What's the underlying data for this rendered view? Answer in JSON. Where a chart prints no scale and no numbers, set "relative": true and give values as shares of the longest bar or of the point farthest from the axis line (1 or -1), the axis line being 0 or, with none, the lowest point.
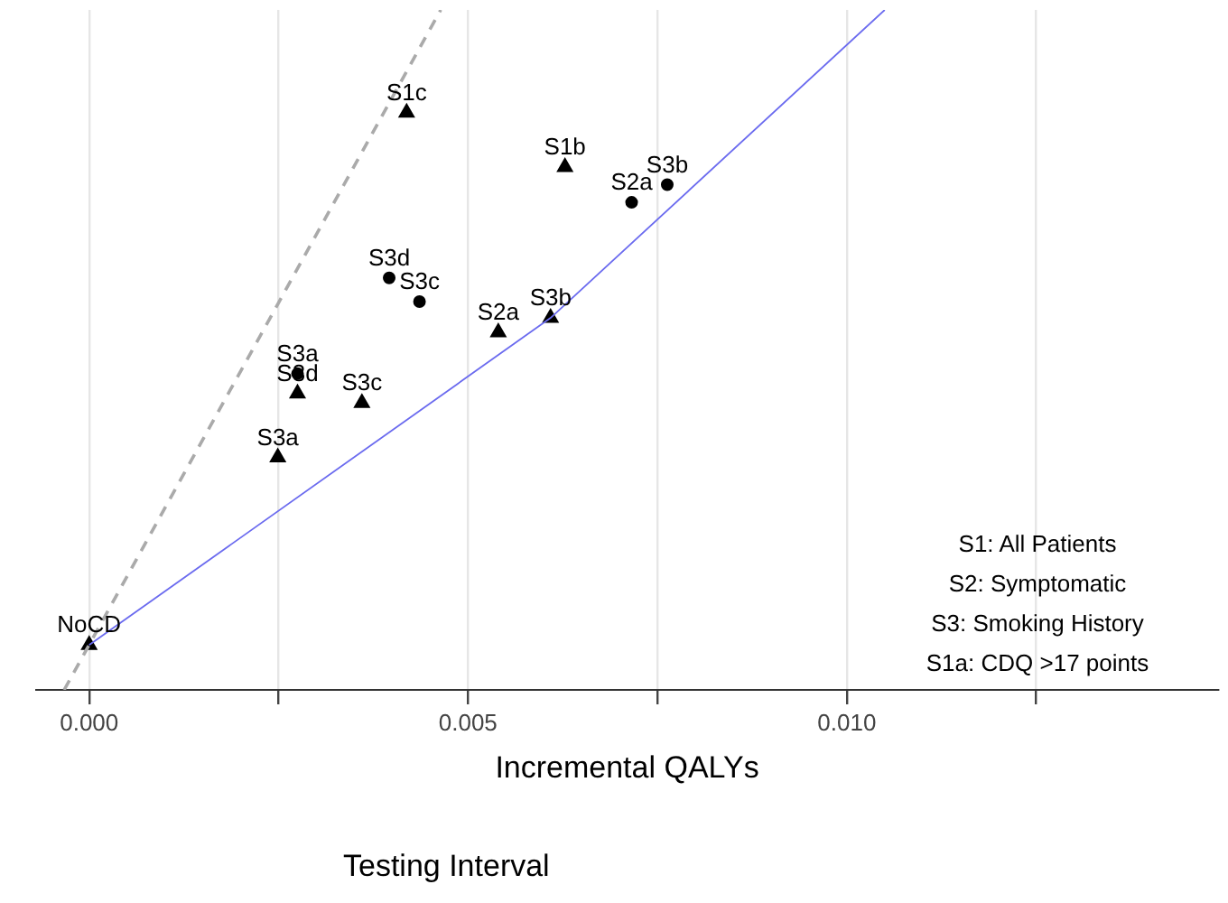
{
  "chart_data": {
    "type": "scatter",
    "relative": true,
    "xlabel": "Incremental QALYs",
    "legend_title": "Testing Interval",
    "legend": false,
    "grid": "x",
    "xlim": [
      -0.0007,
      0.0149
    ],
    "xticks": [
      {
        "value": 0,
        "label": "0.000"
      },
      {
        "value": 0.0025,
        "label": null
      },
      {
        "value": 0.005,
        "label": "0.005"
      },
      {
        "value": 0.0075,
        "label": null
      },
      {
        "value": 0.01,
        "label": "0.010"
      },
      {
        "value": 0.0125,
        "label": null
      }
    ],
    "series": [
      {
        "type": "line",
        "color": "#6b6bef",
        "marker": "none",
        "line_style": "solid",
        "x": [
          0,
          0.00609,
          0.0105
        ],
        "values": [
          0.066,
          0.547,
          1
        ]
      },
      {
        "type": "line",
        "color": "#aaaaaa",
        "marker": "none",
        "line_style": "dashed",
        "x": [
          -0.00033,
          0.00464
        ],
        "values": [
          0,
          1
        ]
      },
      {
        "type": "scatter",
        "color": "#000000",
        "marker": "triangle",
        "x": [
          0,
          0.00419,
          0.00628,
          0.0054,
          0.00609,
          0.00275,
          0.0036,
          0.00249
        ],
        "values": [
          0.066,
          0.849,
          0.769,
          0.526,
          0.547,
          0.436,
          0.422,
          0.342
        ]
      },
      {
        "type": "scatter",
        "color": "#000000",
        "marker": "circle",
        "x": [
          0.00716,
          0.00763,
          0.00396,
          0.00436,
          0.00275
        ],
        "values": [
          0.717,
          0.743,
          0.606,
          0.571,
          0.465
        ]
      }
    ],
    "annotations": [
      {
        "text": "NoCD",
        "x": 0,
        "y": 0.066
      },
      {
        "text": "S1c",
        "x": 0.00419,
        "y": 0.849
      },
      {
        "text": "S1b",
        "x": 0.00628,
        "y": 0.769
      },
      {
        "text": "S2a",
        "x": 0.0054,
        "y": 0.526
      },
      {
        "text": "S3b",
        "x": 0.00609,
        "y": 0.547
      },
      {
        "text": "S3d",
        "x": 0.00275,
        "y": 0.436
      },
      {
        "text": "S3c",
        "x": 0.0036,
        "y": 0.422
      },
      {
        "text": "S3a",
        "x": 0.00249,
        "y": 0.342
      },
      {
        "text": "S2a",
        "x": 0.00716,
        "y": 0.717
      },
      {
        "text": "S3b",
        "x": 0.00763,
        "y": 0.743
      },
      {
        "text": "S3d",
        "x": 0.00396,
        "y": 0.606
      },
      {
        "text": "S3c",
        "x": 0.00436,
        "y": 0.571
      },
      {
        "text": "S3a",
        "x": 0.00275,
        "y": 0.465
      },
      "S1: All Patients",
      "S2: Symptomatic",
      "S3: Smoking History",
      "S1a: CDQ >17 points"
    ]
  }
}
